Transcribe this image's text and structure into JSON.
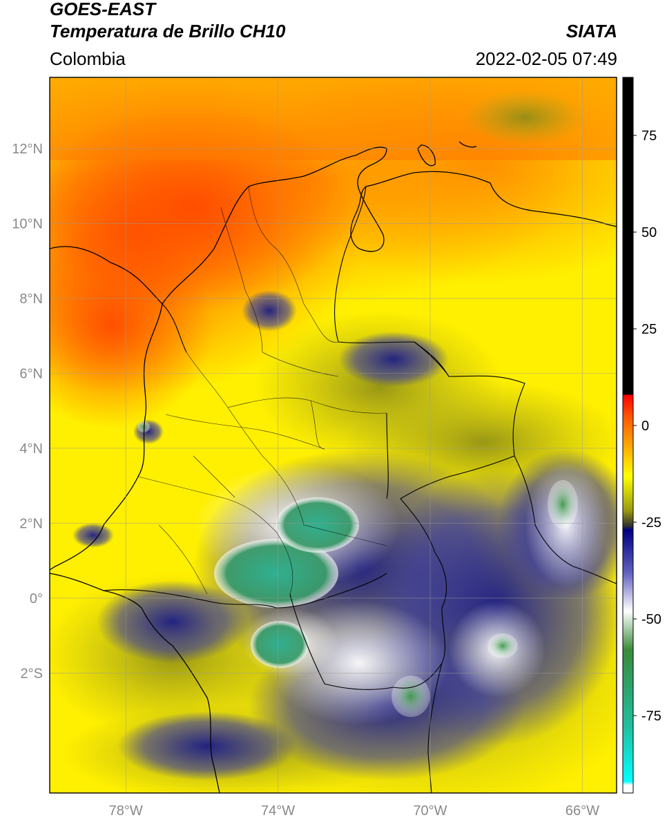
{
  "header": {
    "satellite": "GOES-EAST",
    "product": "Temperatura de Brillo CH10",
    "brand": "SIATA",
    "region": "Colombia",
    "timestamp": "2022-02-05 07:49"
  },
  "map": {
    "lon_range": [
      -80,
      -65.1
    ],
    "lat_range": [
      -5.2,
      13.9
    ],
    "lat_ticks": [
      {
        "value": 12,
        "label": "12°N"
      },
      {
        "value": 10,
        "label": "10°N"
      },
      {
        "value": 8,
        "label": "8°N"
      },
      {
        "value": 6,
        "label": "6°N"
      },
      {
        "value": 4,
        "label": "4°N"
      },
      {
        "value": 2,
        "label": "2°N"
      },
      {
        "value": 0,
        "label": "0°"
      },
      {
        "value": -2,
        "label": "2°S"
      }
    ],
    "lon_ticks": [
      {
        "value": -78,
        "label": "78°W"
      },
      {
        "value": -74,
        "label": "74°W"
      },
      {
        "value": -70,
        "label": "70°W"
      },
      {
        "value": -66,
        "label": "66°W"
      }
    ],
    "grid": true
  },
  "colorbar": {
    "range": [
      -95,
      90
    ],
    "ticks": [
      {
        "value": 75,
        "label": "75"
      },
      {
        "value": 50,
        "label": "50"
      },
      {
        "value": 25,
        "label": "25"
      },
      {
        "value": 0,
        "label": "0"
      },
      {
        "value": -25,
        "label": "-25"
      },
      {
        "value": -50,
        "label": "-50"
      },
      {
        "value": -75,
        "label": "-75"
      }
    ],
    "stops": [
      {
        "value": 90,
        "color": "#000000"
      },
      {
        "value": 8,
        "color": "#000000"
      },
      {
        "value": 7.9,
        "color": "#ff0000"
      },
      {
        "value": 2,
        "color": "#ff5a00"
      },
      {
        "value": -5,
        "color": "#ffa500"
      },
      {
        "value": -13,
        "color": "#ffff00"
      },
      {
        "value": -22,
        "color": "#9a9a10"
      },
      {
        "value": -26,
        "color": "#303030"
      },
      {
        "value": -27,
        "color": "#000080"
      },
      {
        "value": -38,
        "color": "#6060c0"
      },
      {
        "value": -48,
        "color": "#ffffff"
      },
      {
        "value": -58,
        "color": "#3a8a3a"
      },
      {
        "value": -78,
        "color": "#20c0a0"
      },
      {
        "value": -92,
        "color": "#00ffff"
      },
      {
        "value": -93,
        "color": "#ffffff"
      },
      {
        "value": -95,
        "color": "#ffffff"
      }
    ]
  }
}
